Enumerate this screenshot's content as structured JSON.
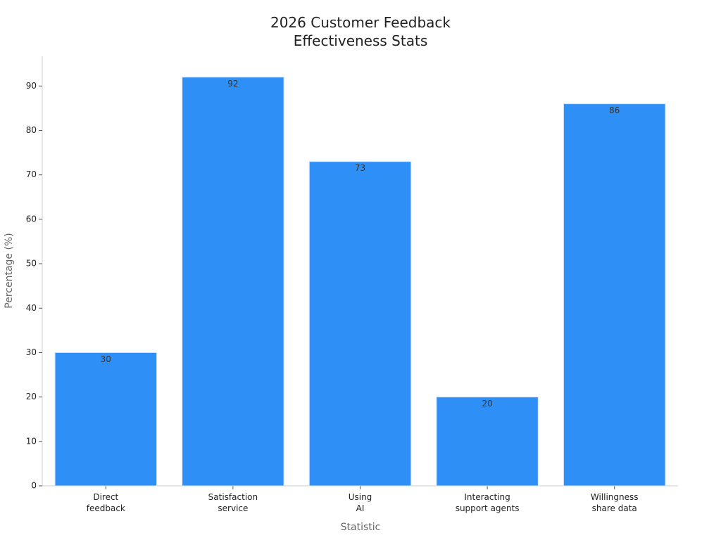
{
  "chart_data": {
    "type": "bar",
    "title": "2026 Customer Feedback\nEffectiveness Stats",
    "x_label": "Statistic",
    "y_label": "Percentage (%)",
    "categories": [
      "Direct\nfeedback",
      "Satisfaction\nservice",
      "Using\nAI",
      "Interacting\nsupport agents",
      "Willingness\nshare data"
    ],
    "values": [
      30,
      92,
      73,
      20,
      86
    ],
    "color": "#2e90f7",
    "ylim": [
      0,
      96.7
    ],
    "yticks": [
      0,
      10,
      20,
      30,
      40,
      50,
      60,
      70,
      80,
      90
    ],
    "grid": false
  }
}
